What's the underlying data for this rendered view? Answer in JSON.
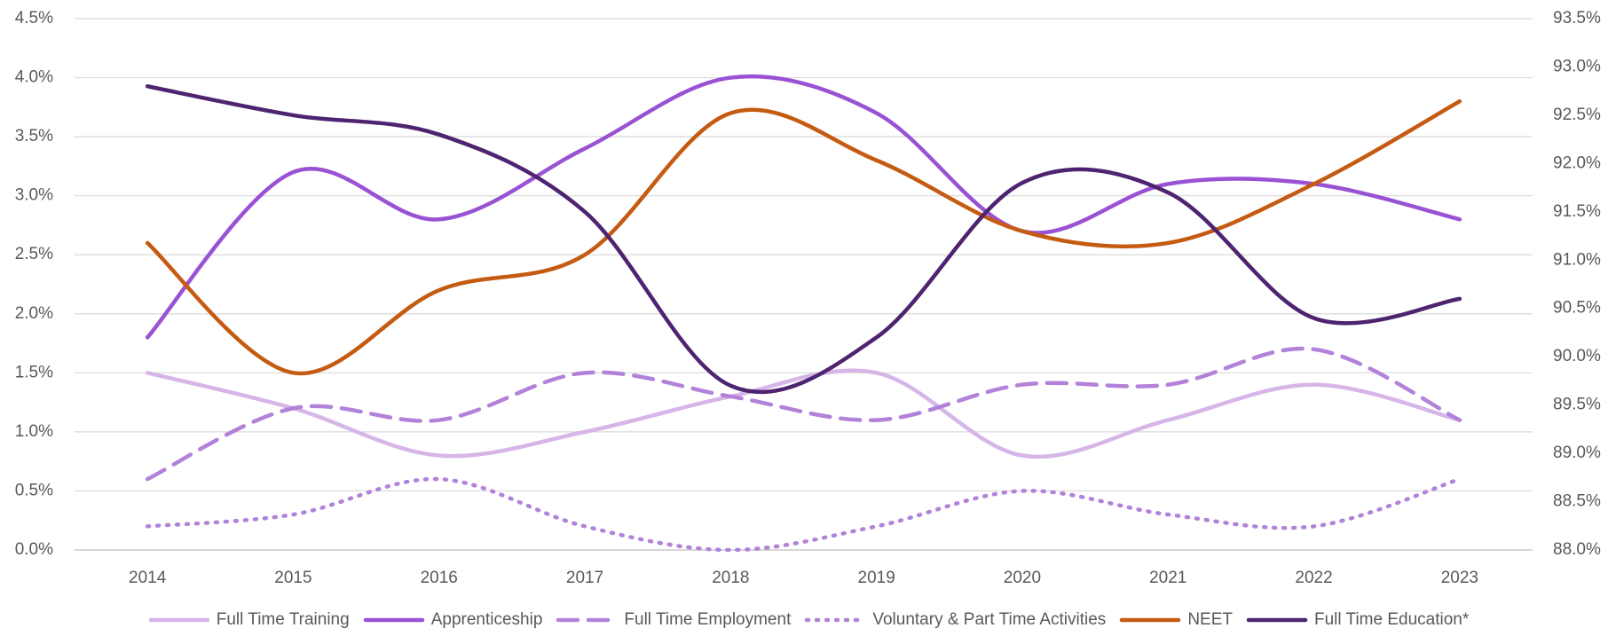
{
  "chart_data": {
    "type": "line",
    "categories": [
      "2014",
      "2015",
      "2016",
      "2017",
      "2018",
      "2019",
      "2020",
      "2021",
      "2022",
      "2023"
    ],
    "series": [
      {
        "name": "Full Time Training",
        "color": "#d6b6e8",
        "dash": "solid",
        "values": [
          1.5,
          1.2,
          0.8,
          1.0,
          1.3,
          1.5,
          0.8,
          1.1,
          1.4,
          1.1
        ]
      },
      {
        "name": "Apprenticeship",
        "color": "#9a52d4",
        "dash": "solid",
        "values": [
          1.8,
          3.2,
          2.8,
          3.4,
          4.0,
          3.7,
          2.7,
          3.1,
          3.1,
          2.8
        ]
      },
      {
        "name": "Full Time Employment",
        "color": "#b282da",
        "dash": "dashed",
        "values": [
          0.6,
          1.2,
          1.1,
          1.5,
          1.3,
          1.1,
          1.4,
          1.4,
          1.7,
          1.1
        ]
      },
      {
        "name": "Voluntary & Part Time Activities",
        "color": "#b282da",
        "dash": "dotted",
        "values": [
          0.2,
          0.3,
          0.6,
          0.2,
          0.0,
          0.2,
          0.5,
          0.3,
          0.2,
          0.6
        ]
      },
      {
        "name": "NEET",
        "color": "#c55a11",
        "dash": "solid",
        "values": [
          2.6,
          1.5,
          2.2,
          2.5,
          3.7,
          3.3,
          2.7,
          2.6,
          3.1,
          3.8
        ]
      },
      {
        "name": "Full Time Education*",
        "color": "#4e2470",
        "dash": "solid",
        "axis": "y2",
        "values": [
          92.8,
          92.5,
          92.3,
          91.5,
          89.7,
          90.2,
          91.8,
          91.7,
          90.4,
          90.6
        ]
      }
    ],
    "ylim": [
      0,
      4.5
    ],
    "yticks": [
      {
        "value": 0,
        "label": "0.0%"
      },
      {
        "value": 0.5,
        "label": "0.5%"
      },
      {
        "value": 1,
        "label": "1.0%"
      },
      {
        "value": 1.5,
        "label": "1.5%"
      },
      {
        "value": 2,
        "label": "2.0%"
      },
      {
        "value": 2.5,
        "label": "2.5%"
      },
      {
        "value": 3,
        "label": "3.0%"
      },
      {
        "value": 3.5,
        "label": "3.5%"
      },
      {
        "value": 4,
        "label": "4.0%"
      },
      {
        "value": 4.5,
        "label": "4.5%"
      }
    ],
    "y2lim": [
      88,
      93.5
    ],
    "y2ticks": [
      {
        "value": 88,
        "label": "88.0%"
      },
      {
        "value": 88.5,
        "label": "88.5%"
      },
      {
        "value": 89,
        "label": "89.0%"
      },
      {
        "value": 89.5,
        "label": "89.5%"
      },
      {
        "value": 90,
        "label": "90.0%"
      },
      {
        "value": 90.5,
        "label": "90.5%"
      },
      {
        "value": 91,
        "label": "91.0%"
      },
      {
        "value": 91.5,
        "label": "91.5%"
      },
      {
        "value": 92,
        "label": "92.0%"
      },
      {
        "value": 92.5,
        "label": "92.5%"
      },
      {
        "value": 93,
        "label": "93.0%"
      },
      {
        "value": 93.5,
        "label": "93.5%"
      }
    ],
    "grid": true,
    "smooth": true,
    "legend": "bottom"
  }
}
